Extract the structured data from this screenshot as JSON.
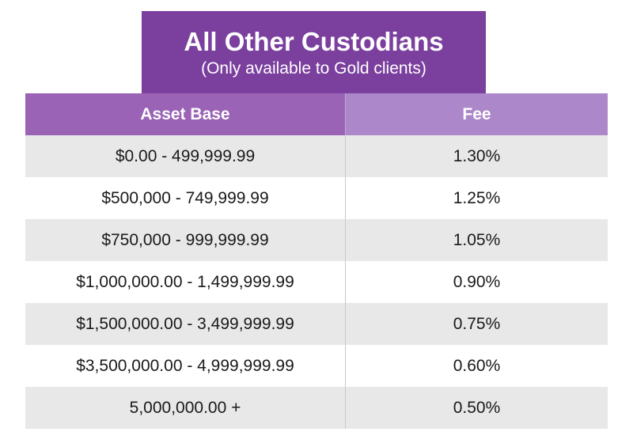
{
  "title": {
    "main": "All Other Custodians",
    "subtitle": "(Only available to Gold clients)"
  },
  "colors": {
    "title_background": "#7b3f9e",
    "header_left_background": "#9a63b6",
    "header_right_background": "#ac87c9",
    "shaded_row_background": "#e8e8e8"
  },
  "table": {
    "headers": [
      "Asset Base",
      "Fee"
    ],
    "rows": [
      [
        "$0.00 - 499,999.99",
        "1.30%"
      ],
      [
        "$500,000 - 749,999.99",
        "1.25%"
      ],
      [
        "$750,000 - 999,999.99",
        "1.05%"
      ],
      [
        "$1,000,000.00 - 1,499,999.99",
        "0.90%"
      ],
      [
        "$1,500,000.00 - 3,499,999.99",
        "0.75%"
      ],
      [
        "$3,500,000.00 - 4,999,999.99",
        "0.60%"
      ],
      [
        "5,000,000.00 +",
        "0.50%"
      ]
    ]
  }
}
